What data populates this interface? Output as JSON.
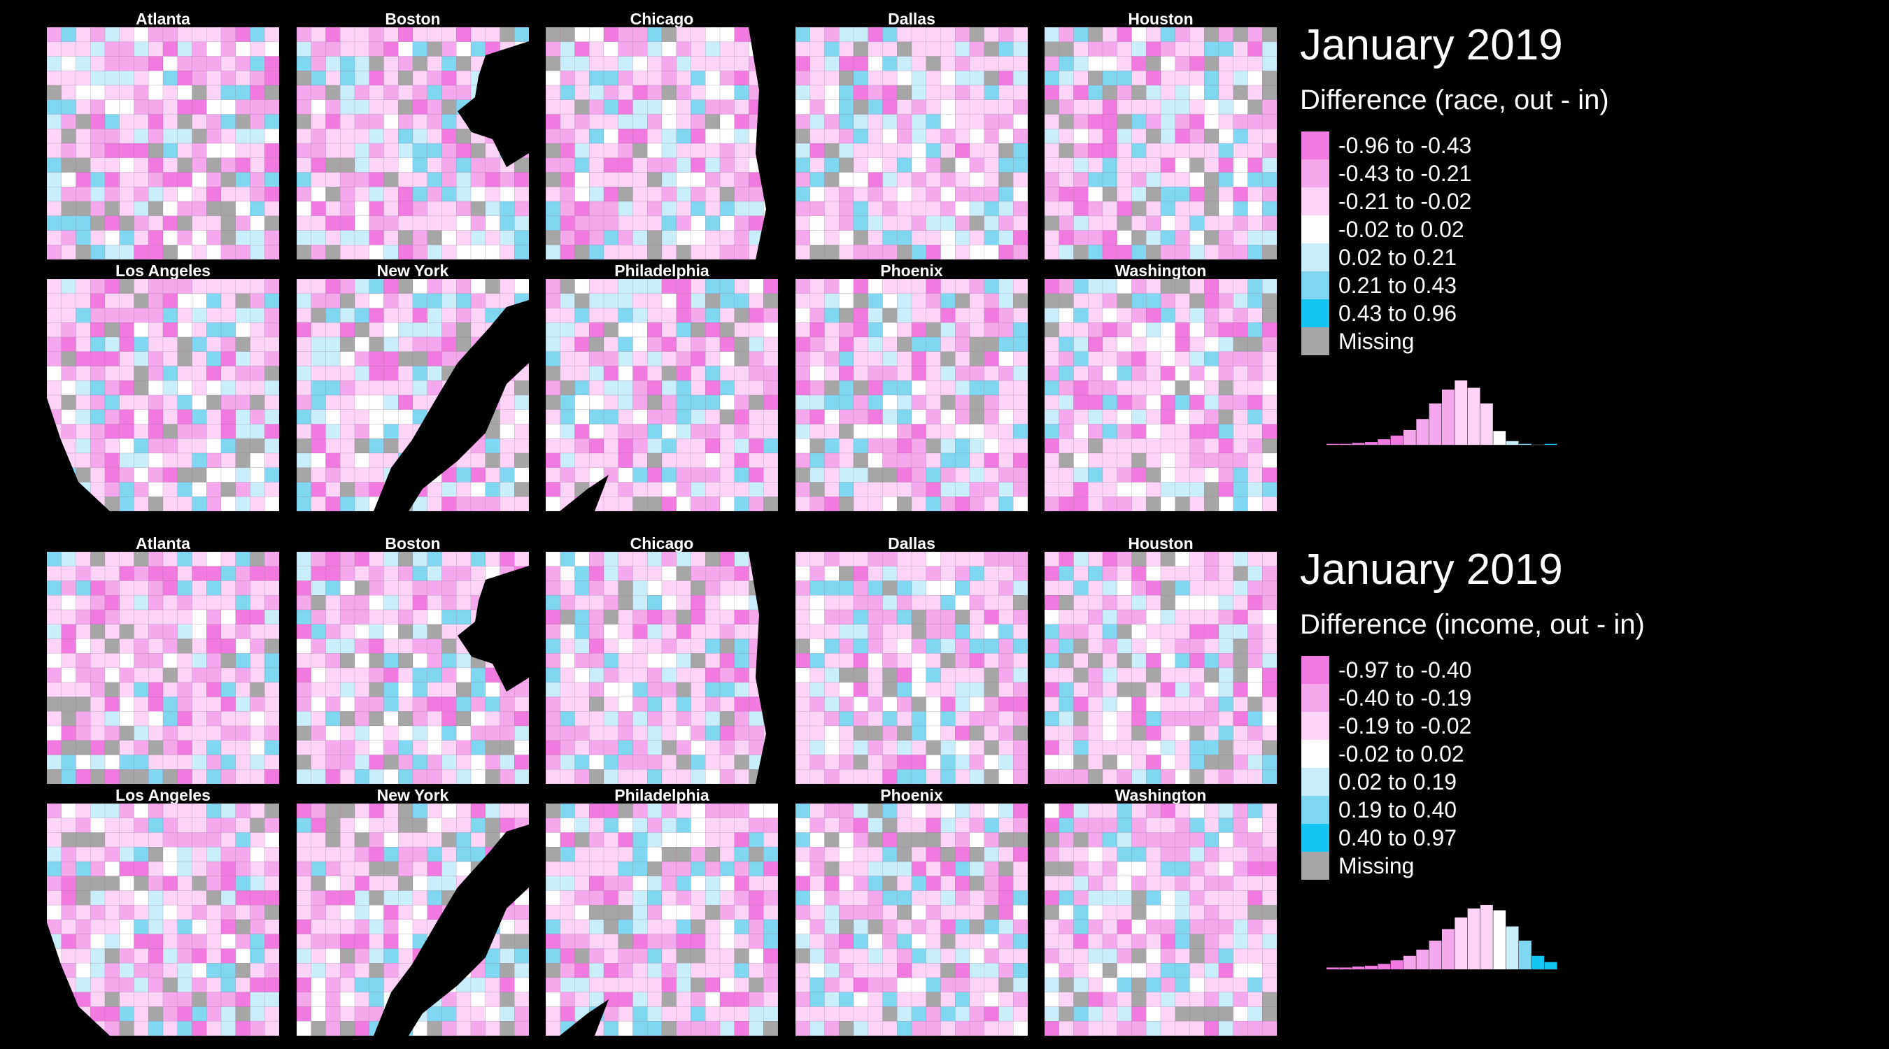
{
  "colors": {
    "background": "#000000",
    "bins": [
      "#f07ae0",
      "#f5a8ec",
      "#fbd4f6",
      "#ffffff",
      "#c9eef9",
      "#7fd7f2",
      "#16c6f2"
    ],
    "missing": "#a6a6a6"
  },
  "panels": [
    {
      "id": "race",
      "cities": [
        "Atlanta",
        "Boston",
        "Chicago",
        "Dallas",
        "Houston",
        "Los Angeles",
        "New York",
        "Philadelphia",
        "Phoenix",
        "Washington"
      ],
      "legend": {
        "title": "January 2019",
        "subtitle": "Difference (race, out - in)",
        "items": [
          "-0.96 to -0.43",
          "-0.43 to -0.21",
          "-0.21 to -0.02",
          "-0.02 to 0.02",
          "0.02 to 0.21",
          "0.21 to 0.43",
          "0.43 to 0.96",
          "Missing"
        ]
      },
      "histogram": [
        0.01,
        0.01,
        0.02,
        0.03,
        0.06,
        0.1,
        0.16,
        0.28,
        0.45,
        0.6,
        0.7,
        0.62,
        0.45,
        0.15,
        0.04,
        0.01,
        0.0,
        0.01
      ]
    },
    {
      "id": "income",
      "cities": [
        "Atlanta",
        "Boston",
        "Chicago",
        "Dallas",
        "Houston",
        "Los Angeles",
        "New York",
        "Philadelphia",
        "Phoenix",
        "Washington"
      ],
      "legend": {
        "title": "January 2019",
        "subtitle": "Difference (income, out - in)",
        "items": [
          "-0.97 to -0.40",
          "-0.40 to -0.19",
          "-0.19 to -0.02",
          "-0.02 to 0.02",
          "0.02 to 0.19",
          "0.19 to 0.40",
          "0.40 to 0.97",
          "Missing"
        ]
      },
      "histogram": [
        0.02,
        0.02,
        0.03,
        0.04,
        0.06,
        0.1,
        0.15,
        0.22,
        0.32,
        0.45,
        0.58,
        0.68,
        0.72,
        0.66,
        0.48,
        0.32,
        0.15,
        0.08
      ]
    }
  ]
}
